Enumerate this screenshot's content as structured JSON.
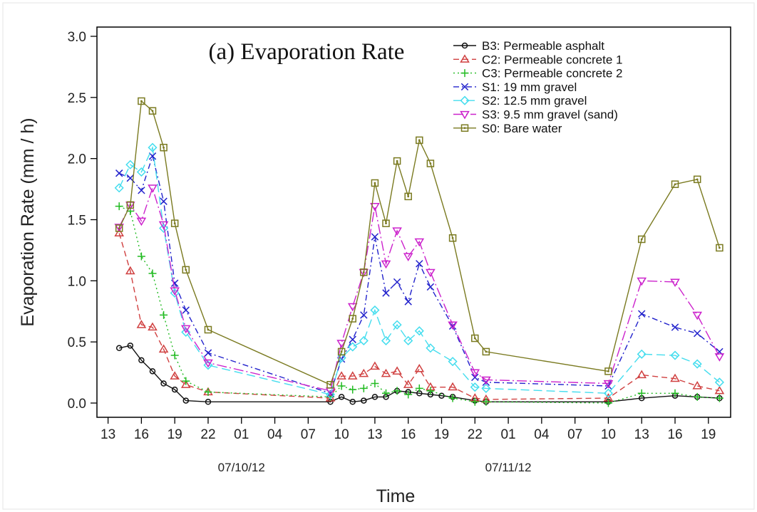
{
  "chart_data": {
    "type": "line",
    "title": "(a) Evaporation Rate",
    "xlabel": "Time",
    "ylabel": "Evaporation Rate (mm / h)",
    "ylim": [
      0,
      3.0
    ],
    "yticks": [
      "0.0",
      "0.5",
      "1.0",
      "1.5",
      "2.0",
      "2.5",
      "3.0"
    ],
    "xlim": [
      12,
      69
    ],
    "xticks": [
      {
        "h": 13,
        "label": "13"
      },
      {
        "h": 16,
        "label": "16"
      },
      {
        "h": 19,
        "label": "19"
      },
      {
        "h": 22,
        "label": "22"
      },
      {
        "h": 25,
        "label": "01"
      },
      {
        "h": 28,
        "label": "04"
      },
      {
        "h": 31,
        "label": "07"
      },
      {
        "h": 34,
        "label": "10"
      },
      {
        "h": 37,
        "label": "13"
      },
      {
        "h": 40,
        "label": "16"
      },
      {
        "h": 43,
        "label": "19"
      },
      {
        "h": 46,
        "label": "22"
      },
      {
        "h": 49,
        "label": "01"
      },
      {
        "h": 52,
        "label": "04"
      },
      {
        "h": 55,
        "label": "07"
      },
      {
        "h": 58,
        "label": "10"
      },
      {
        "h": 61,
        "label": "13"
      },
      {
        "h": 64,
        "label": "16"
      },
      {
        "h": 67,
        "label": "19"
      }
    ],
    "date_labels": [
      {
        "h": 25,
        "label": "07/10/12"
      },
      {
        "h": 49,
        "label": "07/11/12"
      }
    ],
    "grid": false,
    "legend_position": "top-right",
    "series": [
      {
        "name": "B3: Permeable asphalt",
        "color": "#111111",
        "dash": "",
        "marker": "circle",
        "points": [
          [
            14,
            0.45
          ],
          [
            15,
            0.47
          ],
          [
            16,
            0.35
          ],
          [
            17,
            0.26
          ],
          [
            18,
            0.16
          ],
          [
            19,
            0.11
          ],
          [
            20,
            0.02
          ],
          [
            22,
            0.01
          ],
          [
            33,
            0.01
          ],
          [
            34,
            0.05
          ],
          [
            35,
            0.01
          ],
          [
            36,
            0.02
          ],
          [
            37,
            0.05
          ],
          [
            38,
            0.05
          ],
          [
            39,
            0.1
          ],
          [
            40,
            0.09
          ],
          [
            41,
            0.08
          ],
          [
            42,
            0.07
          ],
          [
            43,
            0.06
          ],
          [
            44,
            0.05
          ],
          [
            46,
            0.02
          ],
          [
            47,
            0.01
          ],
          [
            58,
            0.01
          ],
          [
            61,
            0.04
          ],
          [
            64,
            0.06
          ],
          [
            66,
            0.05
          ],
          [
            68,
            0.04
          ]
        ]
      },
      {
        "name": "C2: Permeable concrete 1",
        "color": "#d04040",
        "dash": "8,5",
        "marker": "triangle-up",
        "points": [
          [
            14,
            1.39
          ],
          [
            15,
            1.08
          ],
          [
            16,
            0.64
          ],
          [
            17,
            0.62
          ],
          [
            18,
            0.44
          ],
          [
            19,
            0.22
          ],
          [
            20,
            0.15
          ],
          [
            22,
            0.09
          ],
          [
            33,
            0.04
          ],
          [
            34,
            0.22
          ],
          [
            35,
            0.22
          ],
          [
            36,
            0.24
          ],
          [
            37,
            0.3
          ],
          [
            38,
            0.24
          ],
          [
            39,
            0.26
          ],
          [
            40,
            0.15
          ],
          [
            41,
            0.28
          ],
          [
            42,
            0.13
          ],
          [
            44,
            0.13
          ],
          [
            46,
            0.04
          ],
          [
            47,
            0.03
          ],
          [
            58,
            0.04
          ],
          [
            61,
            0.23
          ],
          [
            64,
            0.2
          ],
          [
            66,
            0.14
          ],
          [
            68,
            0.1
          ]
        ]
      },
      {
        "name": "C3: Permeable concrete 2",
        "color": "#22bb22",
        "dash": "2,4",
        "marker": "plus",
        "points": [
          [
            14,
            1.61
          ],
          [
            15,
            1.57
          ],
          [
            16,
            1.2
          ],
          [
            17,
            1.06
          ],
          [
            18,
            0.72
          ],
          [
            19,
            0.39
          ],
          [
            20,
            0.18
          ],
          [
            22,
            0.09
          ],
          [
            33,
            0.05
          ],
          [
            34,
            0.14
          ],
          [
            35,
            0.11
          ],
          [
            36,
            0.12
          ],
          [
            37,
            0.16
          ],
          [
            38,
            0.08
          ],
          [
            39,
            0.1
          ],
          [
            40,
            0.07
          ],
          [
            41,
            0.12
          ],
          [
            42,
            0.1
          ],
          [
            44,
            0.04
          ],
          [
            46,
            0.01
          ],
          [
            47,
            0.01
          ],
          [
            58,
            0.0
          ],
          [
            61,
            0.08
          ],
          [
            64,
            0.08
          ],
          [
            66,
            0.05
          ],
          [
            68,
            0.04
          ]
        ]
      },
      {
        "name": "S1: 19 mm gravel",
        "color": "#2222cc",
        "dash": "8,4,2,4",
        "marker": "cross",
        "points": [
          [
            14,
            1.88
          ],
          [
            15,
            1.84
          ],
          [
            16,
            1.74
          ],
          [
            17,
            2.02
          ],
          [
            18,
            1.65
          ],
          [
            19,
            0.98
          ],
          [
            20,
            0.76
          ],
          [
            22,
            0.41
          ],
          [
            33,
            0.08
          ],
          [
            34,
            0.36
          ],
          [
            35,
            0.52
          ],
          [
            36,
            0.72
          ],
          [
            37,
            1.36
          ],
          [
            38,
            0.9
          ],
          [
            39,
            0.99
          ],
          [
            40,
            0.83
          ],
          [
            41,
            1.14
          ],
          [
            42,
            0.95
          ],
          [
            44,
            0.63
          ],
          [
            46,
            0.21
          ],
          [
            47,
            0.17
          ],
          [
            58,
            0.14
          ],
          [
            61,
            0.73
          ],
          [
            64,
            0.62
          ],
          [
            66,
            0.57
          ],
          [
            68,
            0.42
          ]
        ]
      },
      {
        "name": "S2: 12.5 mm gravel",
        "color": "#44ddee",
        "dash": "12,6",
        "marker": "diamond",
        "points": [
          [
            14,
            1.76
          ],
          [
            15,
            1.95
          ],
          [
            16,
            1.89
          ],
          [
            17,
            2.09
          ],
          [
            18,
            1.43
          ],
          [
            19,
            0.9
          ],
          [
            20,
            0.58
          ],
          [
            22,
            0.31
          ],
          [
            33,
            0.07
          ],
          [
            34,
            0.37
          ],
          [
            35,
            0.46
          ],
          [
            36,
            0.51
          ],
          [
            37,
            0.76
          ],
          [
            38,
            0.51
          ],
          [
            39,
            0.64
          ],
          [
            40,
            0.51
          ],
          [
            41,
            0.59
          ],
          [
            42,
            0.45
          ],
          [
            44,
            0.34
          ],
          [
            46,
            0.13
          ],
          [
            47,
            0.12
          ],
          [
            58,
            0.08
          ],
          [
            61,
            0.4
          ],
          [
            64,
            0.39
          ],
          [
            66,
            0.32
          ],
          [
            68,
            0.17
          ]
        ]
      },
      {
        "name": "S3: 9.5 mm gravel (sand)",
        "color": "#cc22cc",
        "dash": "14,4,2,4",
        "marker": "triangle-down",
        "points": [
          [
            14,
            1.44
          ],
          [
            15,
            1.62
          ],
          [
            16,
            1.49
          ],
          [
            17,
            1.76
          ],
          [
            18,
            1.46
          ],
          [
            19,
            0.92
          ],
          [
            20,
            0.61
          ],
          [
            22,
            0.33
          ],
          [
            33,
            0.1
          ],
          [
            34,
            0.49
          ],
          [
            35,
            0.79
          ],
          [
            36,
            1.07
          ],
          [
            37,
            1.61
          ],
          [
            38,
            1.14
          ],
          [
            39,
            1.41
          ],
          [
            40,
            1.2
          ],
          [
            41,
            1.32
          ],
          [
            42,
            1.07
          ],
          [
            44,
            0.64
          ],
          [
            46,
            0.25
          ],
          [
            47,
            0.19
          ],
          [
            58,
            0.16
          ],
          [
            61,
            1.0
          ],
          [
            64,
            0.99
          ],
          [
            66,
            0.72
          ],
          [
            68,
            0.38
          ]
        ]
      },
      {
        "name": "S0: Bare water",
        "color": "#7a7a20",
        "dash": "",
        "marker": "square",
        "points": [
          [
            14,
            1.43
          ],
          [
            15,
            1.62
          ],
          [
            16,
            2.47
          ],
          [
            17,
            2.39
          ],
          [
            18,
            2.09
          ],
          [
            19,
            1.47
          ],
          [
            20,
            1.09
          ],
          [
            22,
            0.6
          ],
          [
            33,
            0.15
          ],
          [
            34,
            0.42
          ],
          [
            35,
            0.69
          ],
          [
            36,
            1.07
          ],
          [
            37,
            1.8
          ],
          [
            38,
            1.47
          ],
          [
            39,
            1.98
          ],
          [
            40,
            1.69
          ],
          [
            41,
            2.15
          ],
          [
            42,
            1.96
          ],
          [
            44,
            1.35
          ],
          [
            46,
            0.53
          ],
          [
            47,
            0.42
          ],
          [
            58,
            0.26
          ],
          [
            61,
            1.34
          ],
          [
            64,
            1.79
          ],
          [
            66,
            1.83
          ],
          [
            68,
            1.27
          ]
        ]
      }
    ]
  }
}
